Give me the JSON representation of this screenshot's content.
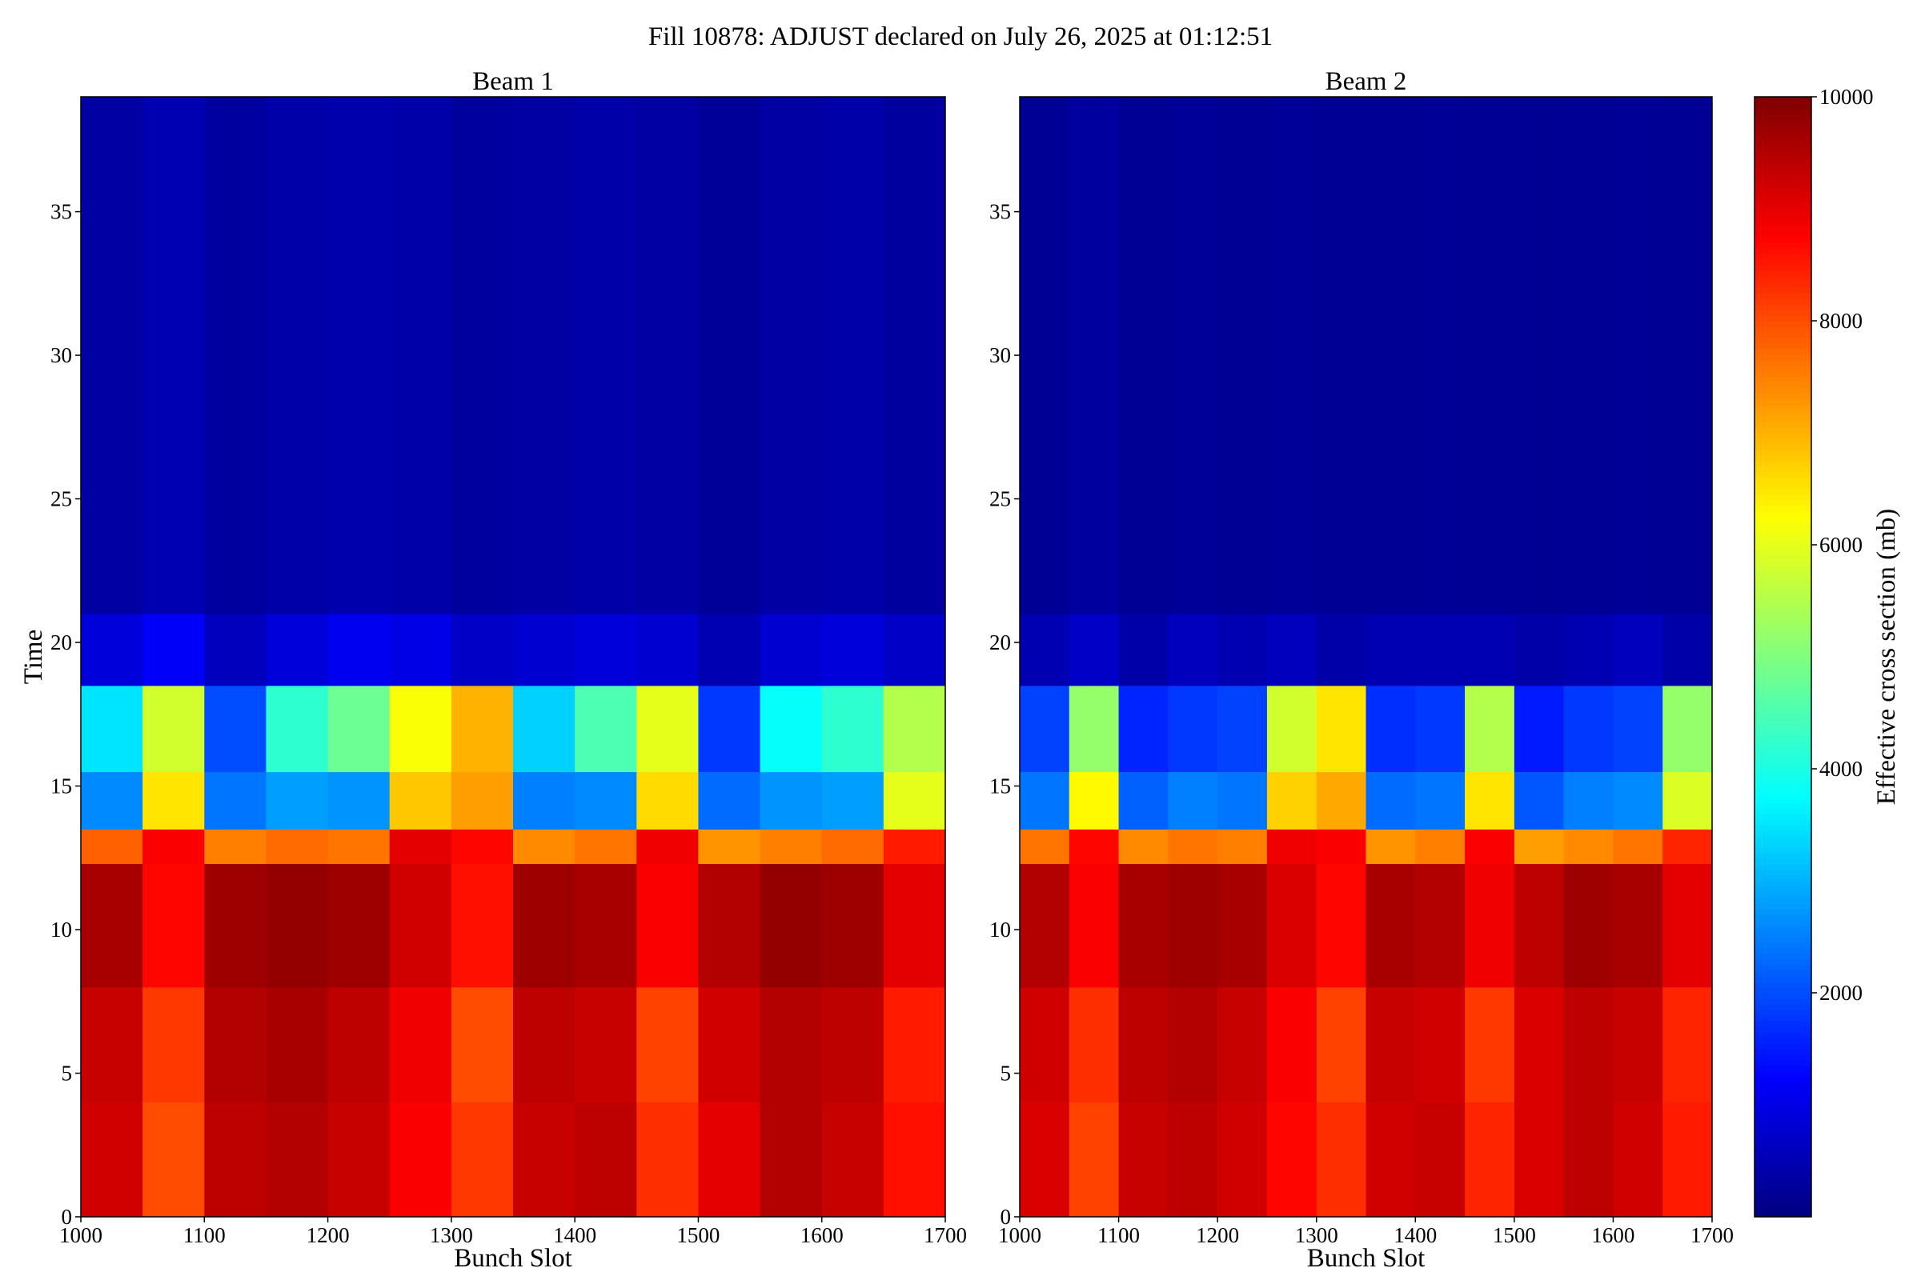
{
  "title": "Fill 10878: ADJUST declared on July 26, 2025 at 01:12:51",
  "colorbar": {
    "label": "Effective cross section (mb)",
    "colormap": "jet",
    "clim": [
      0,
      10000
    ],
    "ticks": [
      2000,
      4000,
      6000,
      8000,
      10000
    ]
  },
  "chart_data": [
    {
      "type": "heatmap",
      "title": "Beam 1",
      "xlabel": "Bunch Slot",
      "ylabel": "Time",
      "xlim": [
        1000,
        1700
      ],
      "xticks": [
        1000,
        1100,
        1200,
        1300,
        1400,
        1500,
        1600,
        1700
      ],
      "ylim": [
        0,
        39
      ],
      "yticks": [
        0,
        5,
        10,
        15,
        20,
        25,
        30,
        35
      ],
      "x_edges": [
        1000,
        1050,
        1100,
        1150,
        1200,
        1250,
        1300,
        1350,
        1400,
        1450,
        1500,
        1550,
        1600,
        1650,
        1700
      ],
      "y_edges": [
        0,
        4,
        8,
        12.3,
        13.5,
        15.5,
        18.5,
        21,
        39
      ],
      "z": [
        [
          9200,
          8000,
          9400,
          9500,
          9300,
          8800,
          8200,
          9300,
          9400,
          8300,
          9000,
          9500,
          9300,
          8600
        ],
        [
          9300,
          8200,
          9500,
          9600,
          9400,
          8900,
          8000,
          9400,
          9300,
          8100,
          9200,
          9500,
          9400,
          8500
        ],
        [
          9600,
          8700,
          9700,
          9800,
          9700,
          9200,
          8600,
          9700,
          9600,
          8800,
          9500,
          9800,
          9700,
          9000
        ],
        [
          7800,
          8800,
          7500,
          7700,
          7600,
          9000,
          8700,
          7400,
          7600,
          8900,
          7300,
          7500,
          7700,
          8500
        ],
        [
          2600,
          6500,
          2400,
          2800,
          2700,
          6800,
          7200,
          2500,
          2600,
          6600,
          2300,
          2700,
          2800,
          6000
        ],
        [
          3500,
          5800,
          2000,
          4200,
          4800,
          6200,
          7000,
          3300,
          4500,
          6000,
          1800,
          3800,
          4200,
          5500
        ],
        [
          900,
          1200,
          600,
          900,
          1100,
          1000,
          700,
          800,
          900,
          800,
          500,
          800,
          900,
          700
        ],
        [
          350,
          500,
          300,
          400,
          450,
          400,
          300,
          350,
          400,
          350,
          250,
          350,
          400,
          300
        ]
      ]
    },
    {
      "type": "heatmap",
      "title": "Beam 2",
      "xlabel": "Bunch Slot",
      "xlim": [
        1000,
        1700
      ],
      "xticks": [
        1000,
        1100,
        1200,
        1300,
        1400,
        1500,
        1600,
        1700
      ],
      "ylim": [
        0,
        39
      ],
      "yticks": [
        0,
        5,
        10,
        15,
        20,
        25,
        30,
        35
      ],
      "x_edges": [
        1000,
        1050,
        1100,
        1150,
        1200,
        1250,
        1300,
        1350,
        1400,
        1450,
        1500,
        1550,
        1600,
        1650,
        1700
      ],
      "y_edges": [
        0,
        4,
        8,
        12.3,
        13.5,
        15.5,
        18.5,
        21,
        39
      ],
      "z": [
        [
          9100,
          8100,
          9300,
          9400,
          9200,
          8700,
          8300,
          9200,
          9300,
          8400,
          9100,
          9400,
          9200,
          8500
        ],
        [
          9200,
          8300,
          9400,
          9500,
          9300,
          8800,
          8100,
          9300,
          9200,
          8200,
          9100,
          9400,
          9300,
          8400
        ],
        [
          9500,
          8800,
          9600,
          9700,
          9600,
          9100,
          8700,
          9600,
          9500,
          8900,
          9400,
          9700,
          9600,
          9000
        ],
        [
          7600,
          8700,
          7400,
          7600,
          7500,
          8900,
          8800,
          7300,
          7500,
          8800,
          7200,
          7400,
          7600,
          8400
        ],
        [
          2400,
          6300,
          2200,
          2500,
          2400,
          6700,
          7100,
          2300,
          2400,
          6500,
          2100,
          2500,
          2600,
          5900
        ],
        [
          1900,
          5200,
          1600,
          1800,
          1900,
          5800,
          6500,
          1700,
          1800,
          5500,
          1500,
          1800,
          1900,
          5200
        ],
        [
          500,
          700,
          400,
          600,
          500,
          600,
          400,
          500,
          500,
          500,
          400,
          500,
          600,
          400
        ],
        [
          200,
          300,
          200,
          250,
          200,
          250,
          200,
          200,
          220,
          200,
          180,
          200,
          220,
          200
        ]
      ]
    }
  ]
}
